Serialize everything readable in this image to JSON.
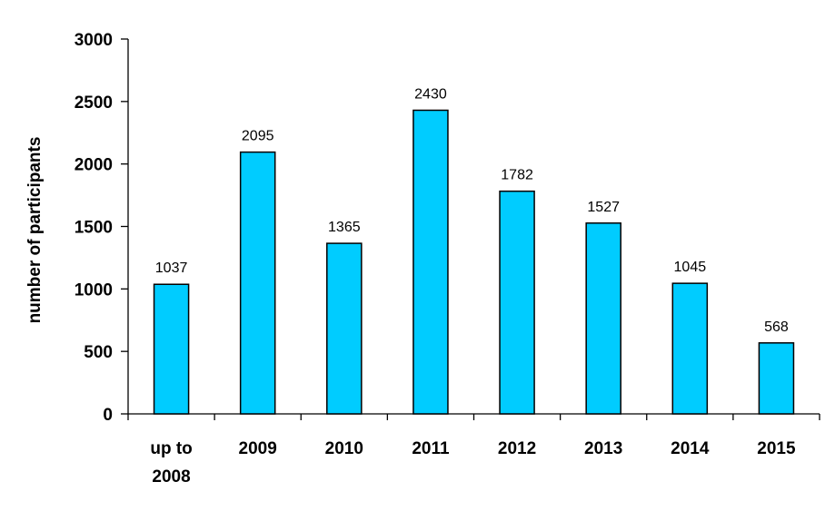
{
  "chart_data": {
    "type": "bar",
    "categories": [
      [
        "up to",
        "2008"
      ],
      [
        "2009"
      ],
      [
        "2010"
      ],
      [
        "2011"
      ],
      [
        "2012"
      ],
      [
        "2013"
      ],
      [
        "2014"
      ],
      [
        "2015"
      ]
    ],
    "values": [
      1037,
      2095,
      1365,
      2430,
      1782,
      1527,
      1045,
      568
    ],
    "title": "",
    "xlabel": "",
    "ylabel": "number of participants",
    "ylim": [
      0,
      3000
    ],
    "yticks": [
      0,
      500,
      1000,
      1500,
      2000,
      2500,
      3000
    ],
    "grid": false,
    "legend": "none",
    "data_labels": true,
    "bar_color": "#00ccff",
    "bar_outline": "#000000"
  }
}
